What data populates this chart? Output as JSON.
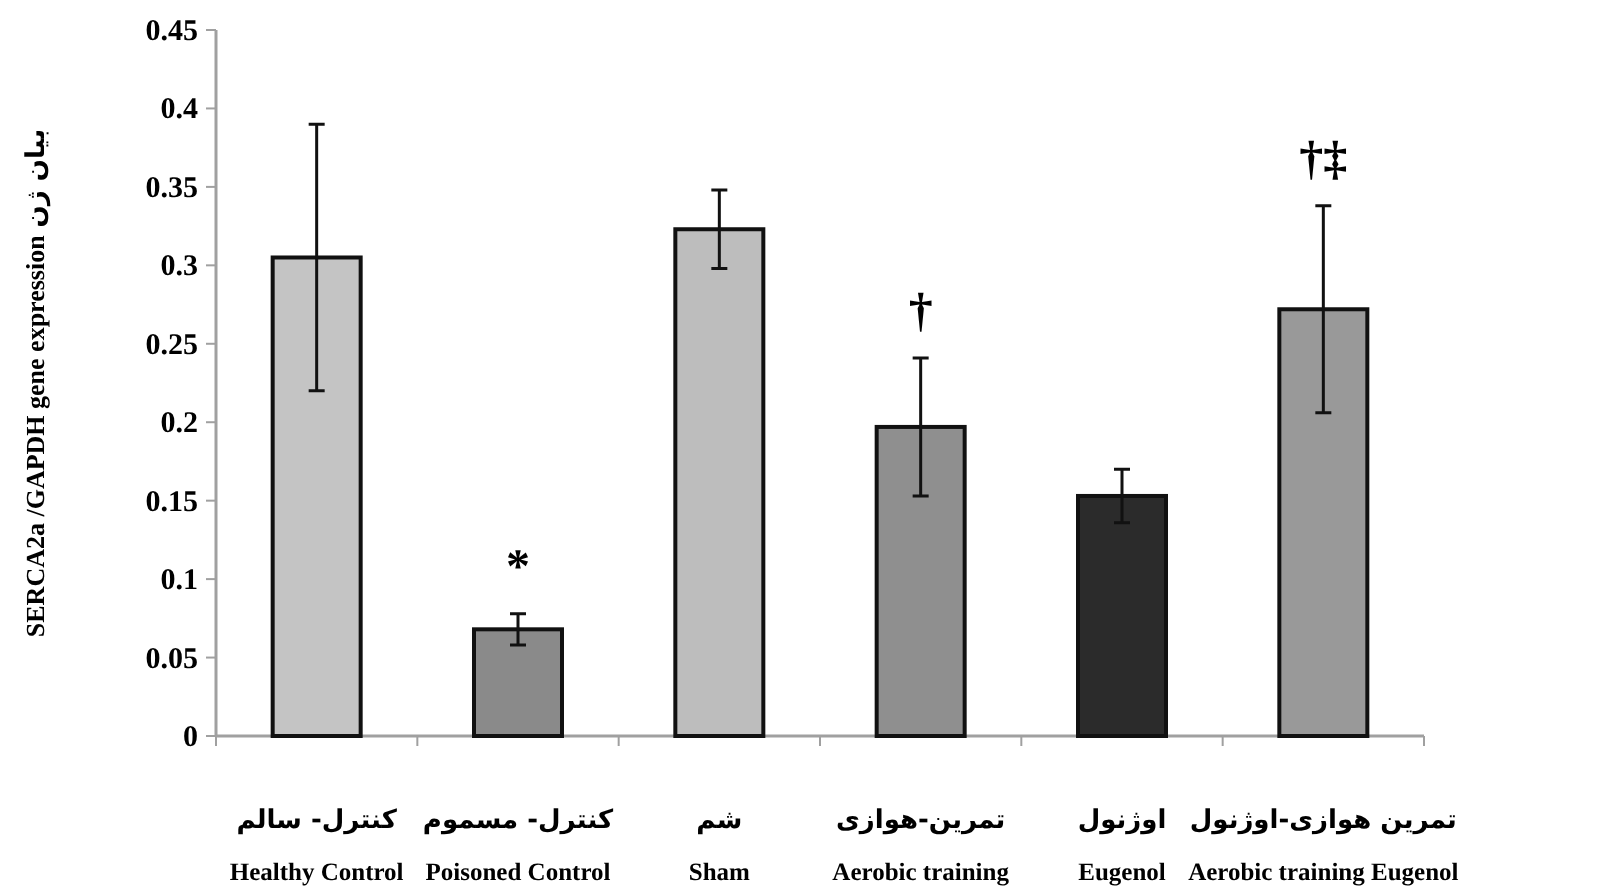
{
  "chart_data": {
    "type": "bar",
    "ylabel": "SERCA2a /GAPDH gene expression",
    "categories": [
      "Healthy Control",
      "Poisoned Control",
      "Sham",
      "Aerobic training",
      "Eugenol",
      "Aerobic training Eugenol"
    ],
    "values": [
      0.305,
      0.068,
      0.323,
      0.197,
      0.153,
      0.272
    ],
    "errors": [
      0.085,
      0.01,
      0.025,
      0.044,
      0.017,
      0.066
    ],
    "colors": [
      "#c4c4c4",
      "#8a8a8a",
      "#bdbdbd",
      "#8f8f8f",
      "#2b2b2b",
      "#999999"
    ],
    "ylim": [
      0,
      0.45
    ],
    "yticks": [
      0,
      0.05,
      0.1,
      0.15,
      0.2,
      0.25,
      0.3,
      0.35,
      0.4,
      0.45
    ],
    "grid": false,
    "legend": false,
    "annotations": [
      "*",
      "†",
      "†‡",
      "کنترل- سالم",
      "کنترل- مسموم",
      "شم",
      "تمرین-هوازی",
      "اوژنول",
      "تمرین هوازی-اوژنول",
      "بیان ژن"
    ]
  }
}
